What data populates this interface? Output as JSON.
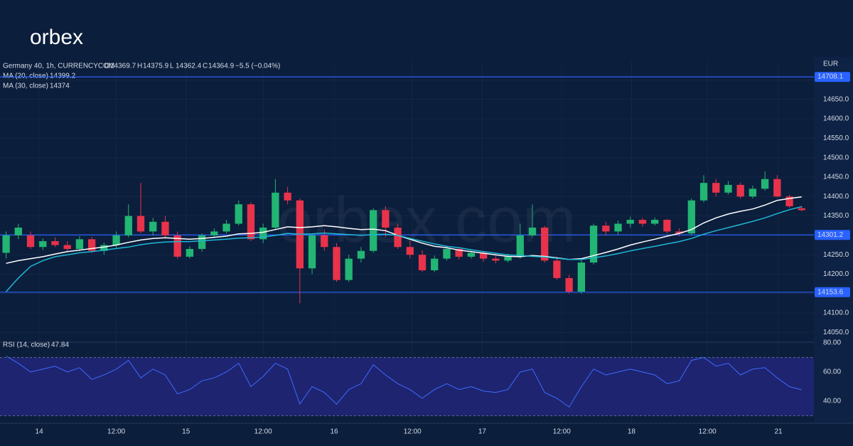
{
  "logo": "orbex",
  "watermark": "orbex.com",
  "chart_data": {
    "type": "candlestick",
    "title": "Germany 40, 1h, CURRENCYCOM",
    "currency": "EUR",
    "ohlc_labels": [
      "O",
      "H",
      "L",
      "C"
    ],
    "change": "−5.5 (−0.04%)",
    "colors": {
      "up": "#22b573",
      "down": "#e8334a",
      "wick_up": "#22b573",
      "wick_down": "#e8334a"
    },
    "candles": [
      [
        14255,
        14310,
        14240,
        14300
      ],
      [
        14300,
        14330,
        14290,
        14320
      ],
      [
        14300,
        14310,
        14265,
        14270
      ],
      [
        14270,
        14292,
        14262,
        14285
      ],
      [
        14285,
        14295,
        14270,
        14275
      ],
      [
        14275,
        14285,
        14258,
        14265
      ],
      [
        14265,
        14298,
        14260,
        14290
      ],
      [
        14290,
        14296,
        14255,
        14260
      ],
      [
        14260,
        14282,
        14250,
        14275
      ],
      [
        14275,
        14310,
        14268,
        14300
      ],
      [
        14300,
        14380,
        14295,
        14350
      ],
      [
        14350,
        14435,
        14305,
        14310
      ],
      [
        14310,
        14345,
        14300,
        14335
      ],
      [
        14335,
        14350,
        14295,
        14300
      ],
      [
        14300,
        14310,
        14240,
        14245
      ],
      [
        14245,
        14272,
        14240,
        14265
      ],
      [
        14265,
        14305,
        14258,
        14300
      ],
      [
        14300,
        14318,
        14295,
        14310
      ],
      [
        14310,
        14340,
        14305,
        14330
      ],
      [
        14330,
        14390,
        14325,
        14380
      ],
      [
        14380,
        14385,
        14285,
        14290
      ],
      [
        14290,
        14330,
        14280,
        14320
      ],
      [
        14320,
        14445,
        14315,
        14410
      ],
      [
        14410,
        14425,
        14380,
        14390
      ],
      [
        14390,
        14395,
        14125,
        14215
      ],
      [
        14215,
        14305,
        14200,
        14300
      ],
      [
        14300,
        14315,
        14260,
        14270
      ],
      [
        14270,
        14280,
        14180,
        14185
      ],
      [
        14185,
        14250,
        14180,
        14240
      ],
      [
        14240,
        14270,
        14230,
        14260
      ],
      [
        14260,
        14370,
        14255,
        14365
      ],
      [
        14365,
        14375,
        14295,
        14320
      ],
      [
        14320,
        14330,
        14265,
        14270
      ],
      [
        14270,
        14285,
        14240,
        14250
      ],
      [
        14250,
        14262,
        14205,
        14210
      ],
      [
        14210,
        14248,
        14205,
        14240
      ],
      [
        14240,
        14272,
        14235,
        14265
      ],
      [
        14265,
        14270,
        14238,
        14245
      ],
      [
        14245,
        14262,
        14240,
        14255
      ],
      [
        14255,
        14260,
        14232,
        14240
      ],
      [
        14240,
        14248,
        14228,
        14235
      ],
      [
        14235,
        14252,
        14230,
        14245
      ],
      [
        14245,
        14330,
        14240,
        14300
      ],
      [
        14300,
        14380,
        14295,
        14320
      ],
      [
        14320,
        14325,
        14230,
        14235
      ],
      [
        14235,
        14245,
        14185,
        14190
      ],
      [
        14190,
        14198,
        14150,
        14155
      ],
      [
        14155,
        14238,
        14150,
        14230
      ],
      [
        14230,
        14330,
        14225,
        14325
      ],
      [
        14325,
        14335,
        14300,
        14310
      ],
      [
        14310,
        14338,
        14302,
        14330
      ],
      [
        14330,
        14348,
        14320,
        14340
      ],
      [
        14340,
        14345,
        14322,
        14330
      ],
      [
        14330,
        14346,
        14325,
        14340
      ],
      [
        14340,
        14342,
        14305,
        14310
      ],
      [
        14310,
        14318,
        14298,
        14305
      ],
      [
        14305,
        14395,
        14300,
        14390
      ],
      [
        14390,
        14455,
        14385,
        14435
      ],
      [
        14435,
        14445,
        14400,
        14410
      ],
      [
        14410,
        14440,
        14405,
        14430
      ],
      [
        14430,
        14436,
        14395,
        14400
      ],
      [
        14400,
        14428,
        14395,
        14420
      ],
      [
        14420,
        14465,
        14415,
        14445
      ],
      [
        14445,
        14455,
        14398,
        14400
      ],
      [
        14400,
        14405,
        14370,
        14375
      ],
      [
        14369.7,
        14375.9,
        14362.4,
        14364.9
      ]
    ],
    "ma": [
      {
        "name": "MA (20, close)",
        "color": "#ffffff",
        "values": [
          14228,
          14235,
          14240,
          14245,
          14252,
          14258,
          14262,
          14266,
          14270,
          14275,
          14282,
          14288,
          14292,
          14294,
          14292,
          14290,
          14292,
          14295,
          14298,
          14304,
          14305,
          14308,
          14315,
          14322,
          14320,
          14322,
          14325,
          14322,
          14318,
          14315,
          14316,
          14312,
          14300,
          14290,
          14280,
          14272,
          14268,
          14262,
          14258,
          14254,
          14250,
          14246,
          14245,
          14248,
          14246,
          14242,
          14238,
          14240,
          14248,
          14256,
          14265,
          14275,
          14283,
          14290,
          14298,
          14305,
          14315,
          14332,
          14345,
          14355,
          14362,
          14368,
          14378,
          14390,
          14395,
          14399.2
        ]
      },
      {
        "name": "MA (30, close)",
        "color": "#1fb8d4",
        "values": [
          14155,
          14190,
          14220,
          14235,
          14245,
          14250,
          14255,
          14258,
          14262,
          14266,
          14270,
          14276,
          14280,
          14283,
          14284,
          14284,
          14286,
          14288,
          14290,
          14293,
          14294,
          14296,
          14300,
          14305,
          14303,
          14304,
          14306,
          14304,
          14302,
          14300,
          14302,
          14303,
          14300,
          14292,
          14285,
          14278,
          14272,
          14268,
          14263,
          14258,
          14254,
          14250,
          14248,
          14246,
          14244,
          14241,
          14238,
          14238,
          14242,
          14247,
          14253,
          14260,
          14266,
          14272,
          14278,
          14284,
          14292,
          14303,
          14312,
          14320,
          14328,
          14336,
          14345,
          14356,
          14366,
          14374.0
        ]
      }
    ],
    "levels": [
      14708.1,
      14301.2,
      14153.6
    ],
    "level_color": "#2962ff",
    "ylim": [
      14025,
      14750.4
    ],
    "yticks": [
      {
        "value": 14050,
        "label": "14050.0"
      },
      {
        "value": 14100,
        "label": "14100.0"
      },
      {
        "value": 14150,
        "label": "14150.0"
      },
      {
        "value": 14200,
        "label": "14200.0"
      },
      {
        "value": 14250,
        "label": "14250.0"
      },
      {
        "value": 14300,
        "label": "14300.0"
      },
      {
        "value": 14350,
        "label": "14350.0"
      },
      {
        "value": 14400,
        "label": "14400.0"
      },
      {
        "value": 14450,
        "label": "14450.0"
      },
      {
        "value": 14500,
        "label": "14500.0"
      },
      {
        "value": 14550,
        "label": "14550.0"
      },
      {
        "value": 14600,
        "label": "14600.0"
      },
      {
        "value": 14650,
        "label": "14650.0"
      },
      {
        "value": 14700,
        "label": "14700.0"
      }
    ],
    "xlim": [
      0,
      66.5
    ],
    "xticks": [
      {
        "value": 3.2,
        "label": "14"
      },
      {
        "value": 9.5,
        "label": "12:00"
      },
      {
        "value": 15.2,
        "label": "15"
      },
      {
        "value": 21.5,
        "label": "12:00"
      },
      {
        "value": 27.3,
        "label": "16"
      },
      {
        "value": 33.7,
        "label": "12:00"
      },
      {
        "value": 39.4,
        "label": "17"
      },
      {
        "value": 45.9,
        "label": "12:00"
      },
      {
        "value": 51.6,
        "label": "18"
      },
      {
        "value": 57.8,
        "label": "12:00"
      },
      {
        "value": 63.6,
        "label": "21"
      }
    ],
    "rsi": {
      "name": "RSI (14, close)",
      "color": "#3d6bff",
      "band": [
        30,
        70
      ],
      "band_color": "#1e2470",
      "values": [
        71,
        66,
        60,
        62,
        64,
        60,
        63,
        55,
        58,
        62,
        68,
        56,
        62,
        58,
        45,
        48,
        54,
        56,
        60,
        66,
        50,
        57,
        66,
        62,
        38,
        50,
        46,
        38,
        48,
        52,
        65,
        58,
        52,
        48,
        42,
        48,
        52,
        48,
        50,
        47,
        46,
        48,
        60,
        62,
        46,
        42,
        36,
        50,
        62,
        58,
        60,
        62,
        60,
        58,
        52,
        54,
        68,
        70,
        64,
        66,
        58,
        62,
        63,
        56,
        50,
        47.84
      ],
      "ylim": [
        24.9,
        80
      ],
      "yticks": [
        {
          "value": 40,
          "label": "40.00"
        },
        {
          "value": 60,
          "label": "60.00"
        },
        {
          "value": 80,
          "label": "80.00"
        }
      ]
    }
  }
}
